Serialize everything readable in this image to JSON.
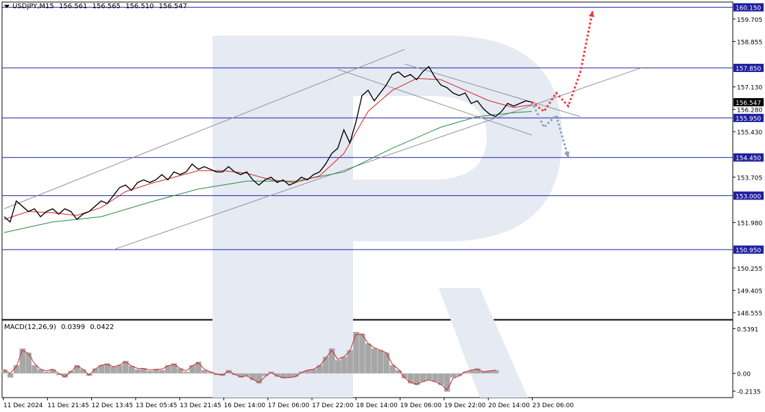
{
  "header": {
    "symbol": "USDJPY,M15",
    "open": "156.561",
    "high": "156.565",
    "low": "156.510",
    "close": "156.547"
  },
  "macd_header": {
    "name": "MACD(12,26,9)",
    "main": "0.0399",
    "signal": "0.0422"
  },
  "chart_data": {
    "type": "candlestick-line",
    "price_axis": {
      "ticks": [
        "159.705",
        "158.855",
        "157.130",
        "156.280",
        "155.430",
        "153.705",
        "151.980",
        "150.255",
        "149.405",
        "148.555"
      ],
      "range": [
        148.555,
        160.3
      ]
    },
    "horizontal_levels": [
      {
        "value": 160.15,
        "label": "160.150"
      },
      {
        "value": 157.85,
        "label": "157.850"
      },
      {
        "value": 155.95,
        "label": "155.950"
      },
      {
        "value": 154.45,
        "label": "154.450"
      },
      {
        "value": 153.0,
        "label": "153.000"
      },
      {
        "value": 150.95,
        "label": "150.950"
      }
    ],
    "current_price": {
      "value": 156.547,
      "label": "156.547"
    },
    "time_axis": [
      "11 Dec 2024",
      "11 Dec 21:45",
      "12 Dec 13:45",
      "13 Dec 05:45",
      "13 Dec 21:45",
      "16 Dec 14:00",
      "17 Dec 06:00",
      "17 Dec 22:00",
      "18 Dec 14:00",
      "19 Dec 06:00",
      "19 Dec 22:00",
      "20 Dec 14:00",
      "23 Dec 06:00"
    ],
    "price_series": [
      [
        0,
        152.2
      ],
      [
        1,
        152.0
      ],
      [
        2,
        152.8
      ],
      [
        3,
        152.6
      ],
      [
        4,
        152.4
      ],
      [
        5,
        152.5
      ],
      [
        6,
        152.2
      ],
      [
        7,
        152.4
      ],
      [
        8,
        152.5
      ],
      [
        9,
        152.3
      ],
      [
        10,
        152.5
      ],
      [
        11,
        152.4
      ],
      [
        12,
        152.1
      ],
      [
        13,
        152.3
      ],
      [
        14,
        152.4
      ],
      [
        15,
        152.6
      ],
      [
        16,
        152.8
      ],
      [
        17,
        152.7
      ],
      [
        18,
        153.0
      ],
      [
        19,
        153.3
      ],
      [
        20,
        153.4
      ],
      [
        21,
        153.2
      ],
      [
        22,
        153.5
      ],
      [
        23,
        153.6
      ],
      [
        24,
        153.5
      ],
      [
        25,
        153.6
      ],
      [
        26,
        153.8
      ],
      [
        27,
        153.6
      ],
      [
        28,
        153.9
      ],
      [
        29,
        153.8
      ],
      [
        30,
        153.9
      ],
      [
        31,
        154.2
      ],
      [
        32,
        154.0
      ],
      [
        33,
        154.1
      ],
      [
        34,
        154.0
      ],
      [
        35,
        153.9
      ],
      [
        36,
        153.9
      ],
      [
        37,
        154.1
      ],
      [
        38,
        153.9
      ],
      [
        39,
        153.8
      ],
      [
        40,
        153.9
      ],
      [
        41,
        153.6
      ],
      [
        42,
        153.4
      ],
      [
        43,
        153.6
      ],
      [
        44,
        153.7
      ],
      [
        45,
        153.5
      ],
      [
        46,
        153.6
      ],
      [
        47,
        153.4
      ],
      [
        48,
        153.5
      ],
      [
        49,
        153.7
      ],
      [
        50,
        153.6
      ],
      [
        51,
        153.8
      ],
      [
        52,
        153.9
      ],
      [
        53,
        154.2
      ],
      [
        54,
        154.6
      ],
      [
        55,
        154.8
      ],
      [
        56,
        155.5
      ],
      [
        57,
        155.0
      ],
      [
        58,
        155.8
      ],
      [
        59,
        156.8
      ],
      [
        60,
        157.0
      ],
      [
        61,
        156.6
      ],
      [
        62,
        156.9
      ],
      [
        63,
        157.2
      ],
      [
        64,
        157.6
      ],
      [
        65,
        157.7
      ],
      [
        66,
        157.5
      ],
      [
        67,
        157.6
      ],
      [
        68,
        157.4
      ],
      [
        69,
        157.7
      ],
      [
        70,
        157.9
      ],
      [
        71,
        157.5
      ],
      [
        72,
        157.2
      ],
      [
        73,
        157.1
      ],
      [
        74,
        156.9
      ],
      [
        75,
        156.8
      ],
      [
        76,
        156.9
      ],
      [
        77,
        156.5
      ],
      [
        78,
        156.6
      ],
      [
        79,
        156.3
      ],
      [
        80,
        156.1
      ],
      [
        81,
        156.0
      ],
      [
        82,
        156.2
      ],
      [
        83,
        156.5
      ],
      [
        84,
        156.4
      ],
      [
        85,
        156.5
      ],
      [
        86,
        156.6
      ],
      [
        87,
        156.55
      ]
    ],
    "ma_fast": [
      [
        0,
        152.1
      ],
      [
        4,
        152.4
      ],
      [
        8,
        152.35
      ],
      [
        12,
        152.25
      ],
      [
        16,
        152.55
      ],
      [
        20,
        153.15
      ],
      [
        24,
        153.45
      ],
      [
        28,
        153.7
      ],
      [
        32,
        153.95
      ],
      [
        36,
        153.95
      ],
      [
        40,
        153.85
      ],
      [
        44,
        153.6
      ],
      [
        48,
        153.5
      ],
      [
        52,
        153.75
      ],
      [
        56,
        154.6
      ],
      [
        60,
        156.2
      ],
      [
        64,
        157.0
      ],
      [
        68,
        157.45
      ],
      [
        72,
        157.4
      ],
      [
        76,
        157.0
      ],
      [
        80,
        156.6
      ],
      [
        84,
        156.35
      ],
      [
        87,
        156.45
      ]
    ],
    "ma_slow": [
      [
        0,
        151.6
      ],
      [
        8,
        152.0
      ],
      [
        16,
        152.2
      ],
      [
        24,
        152.75
      ],
      [
        32,
        153.25
      ],
      [
        40,
        153.55
      ],
      [
        48,
        153.55
      ],
      [
        56,
        153.9
      ],
      [
        64,
        154.8
      ],
      [
        72,
        155.6
      ],
      [
        78,
        156.0
      ],
      [
        84,
        156.15
      ],
      [
        87,
        156.2
      ]
    ],
    "channel_lines": [
      [
        [
          0,
          152.5
        ],
        [
          66,
          158.55
        ]
      ],
      [
        [
          18,
          150.95
        ],
        [
          105,
          157.85
        ]
      ],
      [
        [
          55,
          157.8
        ],
        [
          87,
          155.3
        ]
      ],
      [
        [
          66,
          158.0
        ],
        [
          95,
          156.0
        ]
      ]
    ],
    "forecast_red": [
      [
        87,
        156.55
      ],
      [
        89,
        156.2
      ],
      [
        91,
        156.9
      ],
      [
        93,
        156.4
      ],
      [
        95,
        157.7
      ],
      [
        97,
        160.0
      ]
    ],
    "forecast_grey": [
      [
        87,
        156.55
      ],
      [
        89,
        155.6
      ],
      [
        91,
        156.05
      ],
      [
        93,
        154.45
      ]
    ],
    "macd": {
      "ticks": [
        "0.5391",
        "0.00",
        "-0.2135"
      ],
      "range": [
        -0.25,
        0.6
      ],
      "histogram": [
        0.05,
        -0.05,
        0.1,
        0.3,
        0.25,
        0.1,
        0.05,
        0.02,
        0.05,
        -0.02,
        -0.05,
        0.03,
        0.1,
        0.05,
        -0.03,
        0.06,
        0.1,
        0.12,
        0.08,
        0.1,
        0.15,
        0.09,
        0.05,
        0.06,
        0.03,
        0.05,
        0.04,
        0.1,
        0.12,
        0.06,
        0.02,
        0.1,
        0.14,
        0.04,
        0.02,
        -0.02,
        -0.03,
        0.04,
        -0.02,
        -0.05,
        -0.03,
        -0.08,
        -0.12,
        -0.03,
        0.02,
        -0.04,
        -0.06,
        -0.05,
        -0.04,
        0.02,
        0.04,
        0.05,
        0.1,
        0.2,
        0.3,
        0.16,
        0.2,
        0.28,
        0.5,
        0.48,
        0.36,
        0.3,
        0.28,
        0.25,
        0.1,
        0.04,
        -0.06,
        -0.12,
        -0.14,
        -0.1,
        -0.08,
        -0.1,
        -0.14,
        -0.22,
        -0.05,
        -0.03,
        0.02,
        0.04,
        0.06,
        0.02,
        0.03,
        0.04
      ],
      "signal": [
        0.04,
        0.0,
        0.08,
        0.28,
        0.24,
        0.12,
        0.05,
        0.03,
        0.05,
        0.0,
        -0.04,
        0.02,
        0.09,
        0.05,
        -0.02,
        0.05,
        0.1,
        0.11,
        0.08,
        0.1,
        0.14,
        0.09,
        0.06,
        0.06,
        0.04,
        0.05,
        0.05,
        0.09,
        0.11,
        0.06,
        0.03,
        0.09,
        0.13,
        0.05,
        0.02,
        -0.01,
        -0.02,
        0.03,
        -0.01,
        -0.04,
        -0.03,
        -0.07,
        -0.11,
        -0.04,
        0.01,
        -0.03,
        -0.05,
        -0.05,
        -0.04,
        0.01,
        0.04,
        0.05,
        0.09,
        0.18,
        0.28,
        0.17,
        0.2,
        0.27,
        0.47,
        0.47,
        0.36,
        0.31,
        0.28,
        0.25,
        0.11,
        0.05,
        -0.05,
        -0.11,
        -0.13,
        -0.1,
        -0.08,
        -0.1,
        -0.13,
        -0.2,
        -0.06,
        -0.03,
        0.02,
        0.04,
        0.05,
        0.02,
        0.03,
        0.04
      ]
    },
    "colors": {
      "level_line": "#1a1aa8",
      "level_label_bg": "#1f1fa0",
      "ma_fast": "#d42020",
      "ma_slow": "#228a3a",
      "channel": "#909090",
      "forecast_red": "#ee3b3b",
      "forecast_grey": "#8ea4b8",
      "histogram": "#a7a7a7",
      "watermark": "#e5eaf3"
    }
  }
}
